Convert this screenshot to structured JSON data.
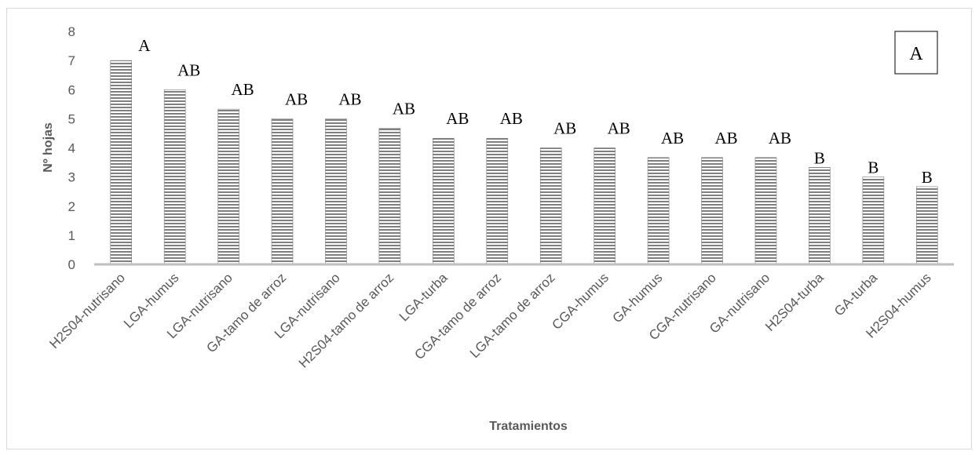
{
  "chart_data": {
    "type": "bar",
    "title": "",
    "xlabel": "Tratamientos",
    "ylabel": "Nº hojas",
    "ylim": [
      0,
      8
    ],
    "yticks": [
      0,
      1,
      2,
      3,
      4,
      5,
      6,
      7,
      8
    ],
    "grid": false,
    "panel_label": "A",
    "categories": [
      "H2S04-nutrisano",
      "LGA-humus",
      "LGA-nutrisano",
      "GA-tamo de arroz",
      "LGA-nutrisano",
      "H2S04-tamo de arroz",
      "LGA-turba",
      "CGA-tamo de arroz",
      "LGA-tamo de arroz",
      "CGA-humus",
      "GA-humus",
      "CGA-nutrisano",
      "GA-nutrisano",
      "H2S04-turba",
      "GA-turba",
      "H2S04-humus"
    ],
    "values": [
      7.0,
      6.0,
      5.33,
      5.0,
      5.0,
      4.67,
      4.33,
      4.33,
      4.0,
      4.0,
      3.67,
      3.67,
      3.67,
      3.33,
      3.0,
      2.67
    ],
    "significance_labels": [
      "A",
      "AB",
      "AB",
      "AB",
      "AB",
      "AB",
      "AB",
      "AB",
      "AB",
      "AB",
      "AB",
      "AB",
      "AB",
      "B",
      "B",
      "B"
    ],
    "colors": {
      "bar_stripe_dark": "#7f7f7f",
      "bar_stripe_light": "#ffffff",
      "axis": "#bfbfbf",
      "text": "#595959"
    }
  }
}
